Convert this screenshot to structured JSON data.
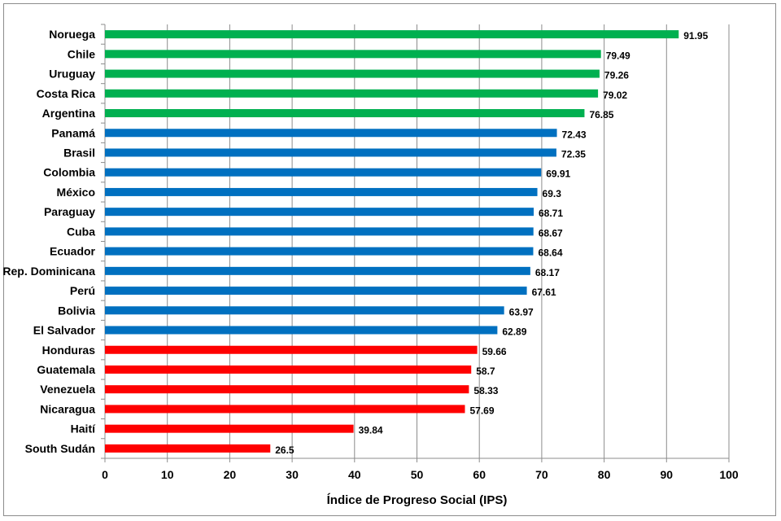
{
  "chart_data": {
    "type": "bar",
    "orientation": "horizontal",
    "title": "",
    "xlabel": "Índice de Progreso Social (IPS)",
    "ylabel": "",
    "xlim": [
      0,
      100
    ],
    "x_ticks": [
      "0",
      "10",
      "20",
      "30",
      "40",
      "50",
      "60",
      "70",
      "80",
      "90",
      "100"
    ],
    "grid": "vertical",
    "legend": "none",
    "categories": [
      "Noruega",
      "Chile",
      "Uruguay",
      "Costa Rica",
      "Argentina",
      "Panamá",
      "Brasil",
      "Colombia",
      "México",
      "Paraguay",
      "Cuba",
      "Ecuador",
      "Rep. Dominicana",
      "Perú",
      "Bolivia",
      "El Salvador",
      "Honduras",
      "Guatemala",
      "Venezuela",
      "Nicaragua",
      "Haití",
      "South Sudán"
    ],
    "values": [
      91.95,
      79.49,
      79.26,
      79.02,
      76.85,
      72.43,
      72.35,
      69.91,
      69.3,
      68.71,
      68.67,
      68.64,
      68.17,
      67.61,
      63.97,
      62.89,
      59.66,
      58.7,
      58.33,
      57.69,
      39.84,
      26.5
    ],
    "value_labels": [
      "91.95",
      "79.49",
      "79.26",
      "79.02",
      "76.85",
      "72.43",
      "72.35",
      "69.91",
      "69.3",
      "68.71",
      "68.67",
      "68.64",
      "68.17",
      "67.61",
      "63.97",
      "62.89",
      "59.66",
      "58.7",
      "58.33",
      "57.69",
      "39.84",
      "26.5"
    ],
    "bar_groups": [
      "green",
      "green",
      "green",
      "green",
      "green",
      "blue",
      "blue",
      "blue",
      "blue",
      "blue",
      "blue",
      "blue",
      "blue",
      "blue",
      "blue",
      "blue",
      "red",
      "red",
      "red",
      "red",
      "red",
      "red"
    ],
    "colors": {
      "green": "#00b050",
      "blue": "#0070c0",
      "red": "#ff0000",
      "grid": "#8c8c8c",
      "axis": "#8c8c8c"
    }
  }
}
